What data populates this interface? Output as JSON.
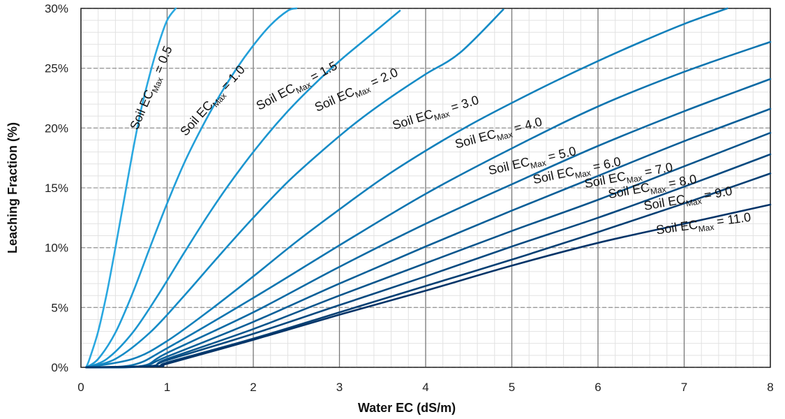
{
  "chart_data": {
    "type": "line",
    "title": "",
    "xlabel": "Water EC (dS/m)",
    "ylabel": "Leaching Fraction (%)",
    "xlim": [
      0,
      8
    ],
    "ylim": [
      0,
      30
    ],
    "x_ticks": [
      0,
      1,
      2,
      3,
      4,
      5,
      6,
      7,
      8
    ],
    "x_tick_labels": [
      "0",
      "1",
      "2",
      "3",
      "4",
      "5",
      "6",
      "7",
      "8"
    ],
    "y_ticks": [
      0,
      5,
      10,
      15,
      20,
      25,
      30
    ],
    "y_tick_labels": [
      "0%",
      "5%",
      "10%",
      "15%",
      "20%",
      "25%",
      "30%"
    ],
    "grid": true,
    "legend": "none (curves labeled inline)",
    "series_label_prefix": "Soil EC",
    "series_label_subscript": "Max",
    "series": [
      {
        "name": "Soil EC Max = 0.5",
        "label_value": "0.5",
        "color": "#2aa8e0",
        "x": [
          0.1,
          0.2,
          0.3,
          0.4,
          0.5,
          0.6,
          0.7,
          0.8,
          0.9,
          1.0,
          1.1
        ],
        "y": [
          0.7,
          3.0,
          6.2,
          10.0,
          14.0,
          18.0,
          21.6,
          24.5,
          27.0,
          29.0,
          30.0
        ]
      },
      {
        "name": "Soil EC Max = 1.0",
        "label_value": "1.0",
        "color": "#229ed8",
        "x": [
          0.2,
          0.4,
          0.6,
          0.8,
          1.0,
          1.2,
          1.4,
          1.6,
          1.8,
          2.0,
          2.2,
          2.4,
          2.5
        ],
        "y": [
          0.7,
          2.9,
          6.2,
          10.0,
          13.7,
          17.1,
          20.0,
          22.6,
          24.9,
          26.9,
          28.6,
          29.8,
          30.0
        ]
      },
      {
        "name": "Soil EC Max = 1.5",
        "label_value": "1.5",
        "color": "#1b95cf",
        "x": [
          0.3,
          0.6,
          0.9,
          1.2,
          1.5,
          1.8,
          2.1,
          2.4,
          2.7,
          3.0,
          3.3,
          3.7
        ],
        "y": [
          0.7,
          2.9,
          6.1,
          9.6,
          13.0,
          16.1,
          18.9,
          21.4,
          23.6,
          25.6,
          27.4,
          29.8
        ]
      },
      {
        "name": "Soil EC Max = 2.0",
        "label_value": "2.0",
        "color": "#158bc6",
        "x": [
          0.4,
          0.8,
          1.2,
          1.6,
          2.0,
          2.4,
          2.8,
          3.2,
          3.6,
          4.0,
          4.4,
          4.9
        ],
        "y": [
          0.7,
          2.9,
          6.0,
          9.3,
          12.5,
          15.5,
          18.1,
          20.5,
          22.6,
          24.5,
          26.3,
          29.9
        ]
      },
      {
        "name": "Soil EC Max = 3.0",
        "label_value": "3.0",
        "color": "#1180bb",
        "x": [
          0.6,
          1.0,
          1.5,
          2.0,
          2.5,
          3.0,
          3.5,
          4.0,
          4.5,
          5.0,
          5.5,
          6.0,
          6.5,
          7.0,
          7.5
        ],
        "y": [
          0.7,
          2.2,
          4.8,
          7.6,
          10.5,
          13.2,
          15.8,
          18.1,
          20.2,
          22.1,
          23.9,
          25.6,
          27.2,
          28.7,
          30.0
        ]
      },
      {
        "name": "Soil EC Max = 4.0",
        "label_value": "4.0",
        "color": "#0e75b0",
        "x": [
          0.6,
          1.0,
          2.0,
          3.0,
          4.0,
          5.0,
          6.0,
          7.0,
          8.0
        ],
        "y": [
          0.2,
          1.6,
          5.8,
          10.2,
          14.5,
          18.3,
          21.8,
          24.7,
          27.2
        ]
      },
      {
        "name": "Soil EC Max = 5.0",
        "label_value": "5.0",
        "color": "#0c6aa4",
        "x": [
          0.7,
          1.0,
          2.0,
          3.0,
          4.0,
          5.0,
          6.0,
          7.0,
          8.0
        ],
        "y": [
          0.1,
          1.2,
          4.6,
          8.4,
          12.0,
          15.3,
          18.5,
          21.4,
          24.1
        ]
      },
      {
        "name": "Soil EC Max = 6.0",
        "label_value": "6.0",
        "color": "#0a5f98",
        "x": [
          0.7,
          1.0,
          2.0,
          3.0,
          4.0,
          5.0,
          6.0,
          7.0,
          8.0
        ],
        "y": [
          0.1,
          0.9,
          3.8,
          7.0,
          10.1,
          13.1,
          16.0,
          18.9,
          21.6
        ]
      },
      {
        "name": "Soil EC Max = 7.0",
        "label_value": "7.0",
        "color": "#09558c",
        "x": [
          0.8,
          1.0,
          2.0,
          3.0,
          4.0,
          5.0,
          6.0,
          7.0,
          8.0
        ],
        "y": [
          0.1,
          0.7,
          3.2,
          6.0,
          8.7,
          11.4,
          14.0,
          16.8,
          19.6
        ]
      },
      {
        "name": "Soil EC Max = 8.0",
        "label_value": "8.0",
        "color": "#074a80",
        "x": [
          0.8,
          1.0,
          2.0,
          3.0,
          4.0,
          5.0,
          6.0,
          7.0,
          8.0
        ],
        "y": [
          0.1,
          0.6,
          2.8,
          5.2,
          7.6,
          10.1,
          12.5,
          15.1,
          17.8
        ]
      },
      {
        "name": "Soil EC Max = 9.0",
        "label_value": "9.0",
        "color": "#064074",
        "x": [
          0.9,
          1.0,
          2.0,
          3.0,
          4.0,
          5.0,
          6.0,
          7.0,
          8.0
        ],
        "y": [
          0.1,
          0.4,
          2.4,
          4.6,
          6.8,
          9.0,
          11.3,
          13.7,
          16.2
        ]
      },
      {
        "name": "Soil EC Max = 11.0",
        "label_value": "11.0",
        "color": "#043468",
        "x": [
          0.9,
          1.0,
          2.0,
          3.0,
          4.0,
          5.0,
          6.0,
          7.0,
          8.0
        ],
        "y": [
          0.1,
          0.3,
          2.3,
          4.4,
          6.4,
          8.5,
          10.4,
          12.0,
          13.6
        ]
      }
    ]
  }
}
